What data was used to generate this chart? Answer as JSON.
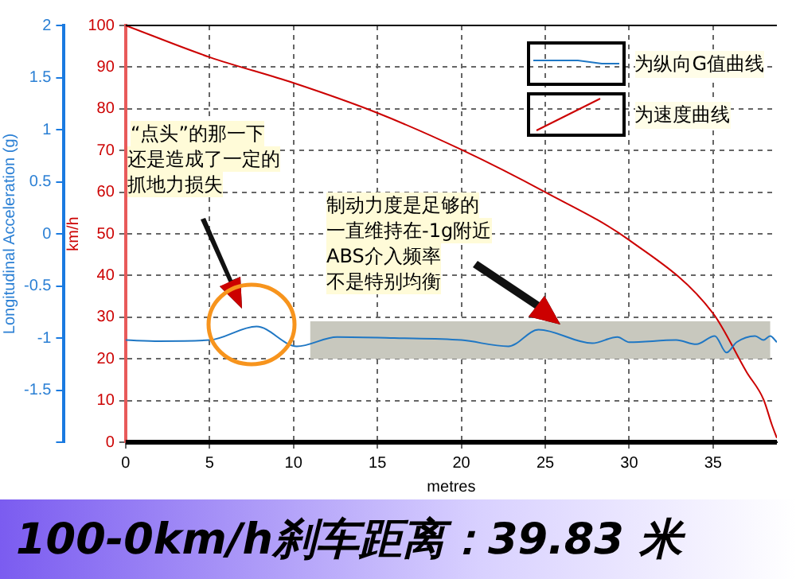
{
  "chart_data": {
    "type": "line",
    "xlabel": "metres",
    "ylabel": "km/h",
    "y2label": "Longitudinal Acceleration (g)",
    "xlim": [
      0,
      38.8
    ],
    "xticks": [
      0,
      5,
      10,
      15,
      20,
      25,
      30,
      35
    ],
    "ylim": [
      0,
      100
    ],
    "yticks": [
      0,
      10,
      20,
      30,
      40,
      50,
      60,
      70,
      80,
      90,
      100
    ],
    "y2lim": [
      -2,
      2
    ],
    "y2ticks": [
      {
        "value": -2,
        "label": null
      },
      -1.5,
      -1,
      -0.5,
      0,
      0.5,
      1,
      1.5,
      2
    ],
    "series": [
      {
        "name": "为纵向G值曲线",
        "color": "#1f77c4",
        "axis": "y2",
        "x": [
          0,
          2,
          5,
          7.8,
          10.2,
          12.6,
          16,
          20,
          22.8,
          24.6,
          27.8,
          29.3,
          30,
          32.8,
          34,
          35.1,
          35.8,
          36.4,
          37.5,
          38,
          38.4,
          38.8
        ],
        "values": [
          -1.02,
          -1.03,
          -1.02,
          -0.89,
          -1.08,
          -0.99,
          -1.0,
          -1.02,
          -1.08,
          -0.92,
          -1.05,
          -0.99,
          -1.04,
          -1.02,
          -1.06,
          -0.98,
          -1.14,
          -1.04,
          -0.98,
          -1.02,
          -0.98,
          -1.04
        ]
      },
      {
        "name": "为速度曲线",
        "color": "#cc0000",
        "axis": "y",
        "x": [
          0,
          5,
          10,
          15,
          20,
          25,
          30,
          35,
          37,
          38,
          38.5,
          38.8
        ],
        "values": [
          100,
          92.4,
          86.2,
          79,
          70.2,
          60,
          48.5,
          30.9,
          16.8,
          10.3,
          4.2,
          1
        ]
      }
    ],
    "bands": [
      {
        "axis": "y",
        "from": 20,
        "to": 29,
        "color": "#c8c8be"
      }
    ],
    "grid": true,
    "legend": "top right",
    "marker": "none",
    "line_style": "solid",
    "annotations": [
      "“点头”的那一下",
      "还是造成了一定的",
      "抓地力损失",
      "制动力度是足够的",
      "一直维持在-1g附近",
      "ABS介入频率",
      "不是特别均衡",
      "100-0km/h刹车距离：39.83 米"
    ]
  }
}
